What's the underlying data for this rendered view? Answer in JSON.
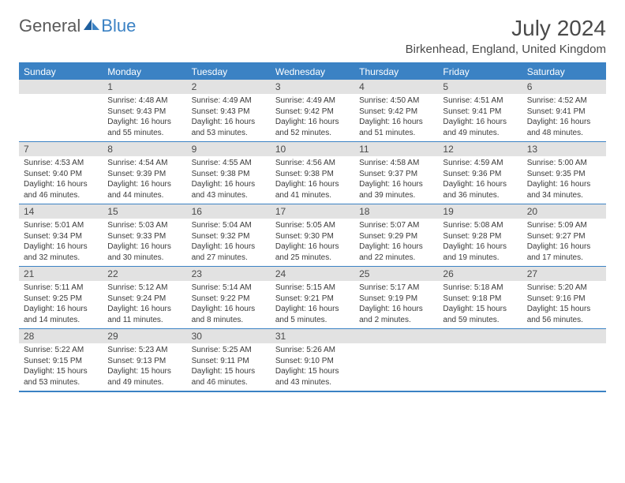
{
  "logo": {
    "word1": "General",
    "word2": "Blue"
  },
  "title": "July 2024",
  "location": "Birkenhead, England, United Kingdom",
  "weekdays": [
    "Sunday",
    "Monday",
    "Tuesday",
    "Wednesday",
    "Thursday",
    "Friday",
    "Saturday"
  ],
  "colors": {
    "header_bg": "#3b82c4",
    "daynum_bg": "#e2e2e2",
    "text": "#4a4a4a"
  },
  "weeks": [
    [
      {
        "n": "",
        "sunrise": "",
        "sunset": "",
        "daylight1": "",
        "daylight2": ""
      },
      {
        "n": "1",
        "sunrise": "Sunrise: 4:48 AM",
        "sunset": "Sunset: 9:43 PM",
        "daylight1": "Daylight: 16 hours",
        "daylight2": "and 55 minutes."
      },
      {
        "n": "2",
        "sunrise": "Sunrise: 4:49 AM",
        "sunset": "Sunset: 9:43 PM",
        "daylight1": "Daylight: 16 hours",
        "daylight2": "and 53 minutes."
      },
      {
        "n": "3",
        "sunrise": "Sunrise: 4:49 AM",
        "sunset": "Sunset: 9:42 PM",
        "daylight1": "Daylight: 16 hours",
        "daylight2": "and 52 minutes."
      },
      {
        "n": "4",
        "sunrise": "Sunrise: 4:50 AM",
        "sunset": "Sunset: 9:42 PM",
        "daylight1": "Daylight: 16 hours",
        "daylight2": "and 51 minutes."
      },
      {
        "n": "5",
        "sunrise": "Sunrise: 4:51 AM",
        "sunset": "Sunset: 9:41 PM",
        "daylight1": "Daylight: 16 hours",
        "daylight2": "and 49 minutes."
      },
      {
        "n": "6",
        "sunrise": "Sunrise: 4:52 AM",
        "sunset": "Sunset: 9:41 PM",
        "daylight1": "Daylight: 16 hours",
        "daylight2": "and 48 minutes."
      }
    ],
    [
      {
        "n": "7",
        "sunrise": "Sunrise: 4:53 AM",
        "sunset": "Sunset: 9:40 PM",
        "daylight1": "Daylight: 16 hours",
        "daylight2": "and 46 minutes."
      },
      {
        "n": "8",
        "sunrise": "Sunrise: 4:54 AM",
        "sunset": "Sunset: 9:39 PM",
        "daylight1": "Daylight: 16 hours",
        "daylight2": "and 44 minutes."
      },
      {
        "n": "9",
        "sunrise": "Sunrise: 4:55 AM",
        "sunset": "Sunset: 9:38 PM",
        "daylight1": "Daylight: 16 hours",
        "daylight2": "and 43 minutes."
      },
      {
        "n": "10",
        "sunrise": "Sunrise: 4:56 AM",
        "sunset": "Sunset: 9:38 PM",
        "daylight1": "Daylight: 16 hours",
        "daylight2": "and 41 minutes."
      },
      {
        "n": "11",
        "sunrise": "Sunrise: 4:58 AM",
        "sunset": "Sunset: 9:37 PM",
        "daylight1": "Daylight: 16 hours",
        "daylight2": "and 39 minutes."
      },
      {
        "n": "12",
        "sunrise": "Sunrise: 4:59 AM",
        "sunset": "Sunset: 9:36 PM",
        "daylight1": "Daylight: 16 hours",
        "daylight2": "and 36 minutes."
      },
      {
        "n": "13",
        "sunrise": "Sunrise: 5:00 AM",
        "sunset": "Sunset: 9:35 PM",
        "daylight1": "Daylight: 16 hours",
        "daylight2": "and 34 minutes."
      }
    ],
    [
      {
        "n": "14",
        "sunrise": "Sunrise: 5:01 AM",
        "sunset": "Sunset: 9:34 PM",
        "daylight1": "Daylight: 16 hours",
        "daylight2": "and 32 minutes."
      },
      {
        "n": "15",
        "sunrise": "Sunrise: 5:03 AM",
        "sunset": "Sunset: 9:33 PM",
        "daylight1": "Daylight: 16 hours",
        "daylight2": "and 30 minutes."
      },
      {
        "n": "16",
        "sunrise": "Sunrise: 5:04 AM",
        "sunset": "Sunset: 9:32 PM",
        "daylight1": "Daylight: 16 hours",
        "daylight2": "and 27 minutes."
      },
      {
        "n": "17",
        "sunrise": "Sunrise: 5:05 AM",
        "sunset": "Sunset: 9:30 PM",
        "daylight1": "Daylight: 16 hours",
        "daylight2": "and 25 minutes."
      },
      {
        "n": "18",
        "sunrise": "Sunrise: 5:07 AM",
        "sunset": "Sunset: 9:29 PM",
        "daylight1": "Daylight: 16 hours",
        "daylight2": "and 22 minutes."
      },
      {
        "n": "19",
        "sunrise": "Sunrise: 5:08 AM",
        "sunset": "Sunset: 9:28 PM",
        "daylight1": "Daylight: 16 hours",
        "daylight2": "and 19 minutes."
      },
      {
        "n": "20",
        "sunrise": "Sunrise: 5:09 AM",
        "sunset": "Sunset: 9:27 PM",
        "daylight1": "Daylight: 16 hours",
        "daylight2": "and 17 minutes."
      }
    ],
    [
      {
        "n": "21",
        "sunrise": "Sunrise: 5:11 AM",
        "sunset": "Sunset: 9:25 PM",
        "daylight1": "Daylight: 16 hours",
        "daylight2": "and 14 minutes."
      },
      {
        "n": "22",
        "sunrise": "Sunrise: 5:12 AM",
        "sunset": "Sunset: 9:24 PM",
        "daylight1": "Daylight: 16 hours",
        "daylight2": "and 11 minutes."
      },
      {
        "n": "23",
        "sunrise": "Sunrise: 5:14 AM",
        "sunset": "Sunset: 9:22 PM",
        "daylight1": "Daylight: 16 hours",
        "daylight2": "and 8 minutes."
      },
      {
        "n": "24",
        "sunrise": "Sunrise: 5:15 AM",
        "sunset": "Sunset: 9:21 PM",
        "daylight1": "Daylight: 16 hours",
        "daylight2": "and 5 minutes."
      },
      {
        "n": "25",
        "sunrise": "Sunrise: 5:17 AM",
        "sunset": "Sunset: 9:19 PM",
        "daylight1": "Daylight: 16 hours",
        "daylight2": "and 2 minutes."
      },
      {
        "n": "26",
        "sunrise": "Sunrise: 5:18 AM",
        "sunset": "Sunset: 9:18 PM",
        "daylight1": "Daylight: 15 hours",
        "daylight2": "and 59 minutes."
      },
      {
        "n": "27",
        "sunrise": "Sunrise: 5:20 AM",
        "sunset": "Sunset: 9:16 PM",
        "daylight1": "Daylight: 15 hours",
        "daylight2": "and 56 minutes."
      }
    ],
    [
      {
        "n": "28",
        "sunrise": "Sunrise: 5:22 AM",
        "sunset": "Sunset: 9:15 PM",
        "daylight1": "Daylight: 15 hours",
        "daylight2": "and 53 minutes."
      },
      {
        "n": "29",
        "sunrise": "Sunrise: 5:23 AM",
        "sunset": "Sunset: 9:13 PM",
        "daylight1": "Daylight: 15 hours",
        "daylight2": "and 49 minutes."
      },
      {
        "n": "30",
        "sunrise": "Sunrise: 5:25 AM",
        "sunset": "Sunset: 9:11 PM",
        "daylight1": "Daylight: 15 hours",
        "daylight2": "and 46 minutes."
      },
      {
        "n": "31",
        "sunrise": "Sunrise: 5:26 AM",
        "sunset": "Sunset: 9:10 PM",
        "daylight1": "Daylight: 15 hours",
        "daylight2": "and 43 minutes."
      },
      {
        "n": "",
        "sunrise": "",
        "sunset": "",
        "daylight1": "",
        "daylight2": ""
      },
      {
        "n": "",
        "sunrise": "",
        "sunset": "",
        "daylight1": "",
        "daylight2": ""
      },
      {
        "n": "",
        "sunrise": "",
        "sunset": "",
        "daylight1": "",
        "daylight2": ""
      }
    ]
  ]
}
